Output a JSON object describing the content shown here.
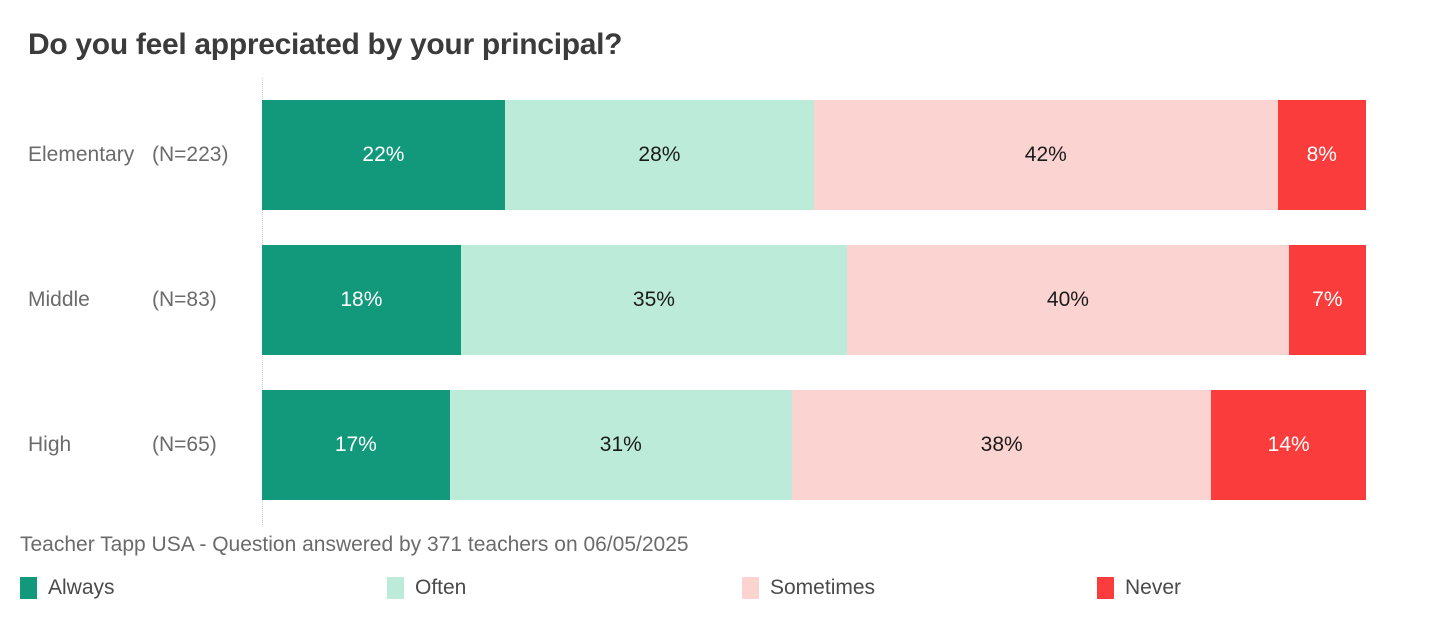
{
  "title": "Do you feel appreciated by your principal?",
  "source_note": "Teacher Tapp USA - Question answered by 371 teachers on 06/05/2025",
  "colors": {
    "background": "#ffffff",
    "title_text": "#3b3b3b",
    "axis_label_text": "#6b6b6b",
    "source_text": "#6b6b6b",
    "legend_text": "#4a4a4a",
    "baseline_dotted": "#c8c8c8"
  },
  "chart_data": {
    "type": "bar",
    "variant": "horizontal-stacked-100",
    "title": "Do you feel appreciated by your principal?",
    "xlabel": "",
    "ylabel": "",
    "xlim": [
      0,
      100
    ],
    "grid": false,
    "legend_position": "bottom",
    "categories": [
      "Elementary",
      "Middle",
      "High"
    ],
    "category_counts": [
      "(N=223)",
      "(N=83)",
      "(N=65)"
    ],
    "value_suffix": "%",
    "series": [
      {
        "name": "Always",
        "color": "#12997b",
        "label_color": "#ffffff",
        "values": [
          22,
          18,
          17
        ]
      },
      {
        "name": "Often",
        "color": "#bcebd9",
        "label_color": "#1b1b1b",
        "values": [
          28,
          35,
          31
        ]
      },
      {
        "name": "Sometimes",
        "color": "#fbd4d1",
        "label_color": "#1b1b1b",
        "values": [
          42,
          40,
          38
        ]
      },
      {
        "name": "Never",
        "color": "#fa3c3c",
        "label_color": "#ffffff",
        "values": [
          8,
          7,
          14
        ]
      }
    ]
  },
  "legend": {
    "items": [
      {
        "label": "Always",
        "color": "#12997b"
      },
      {
        "label": "Often",
        "color": "#bcebd9"
      },
      {
        "label": "Sometimes",
        "color": "#fbd4d1"
      },
      {
        "label": "Never",
        "color": "#fa3c3c"
      }
    ]
  }
}
